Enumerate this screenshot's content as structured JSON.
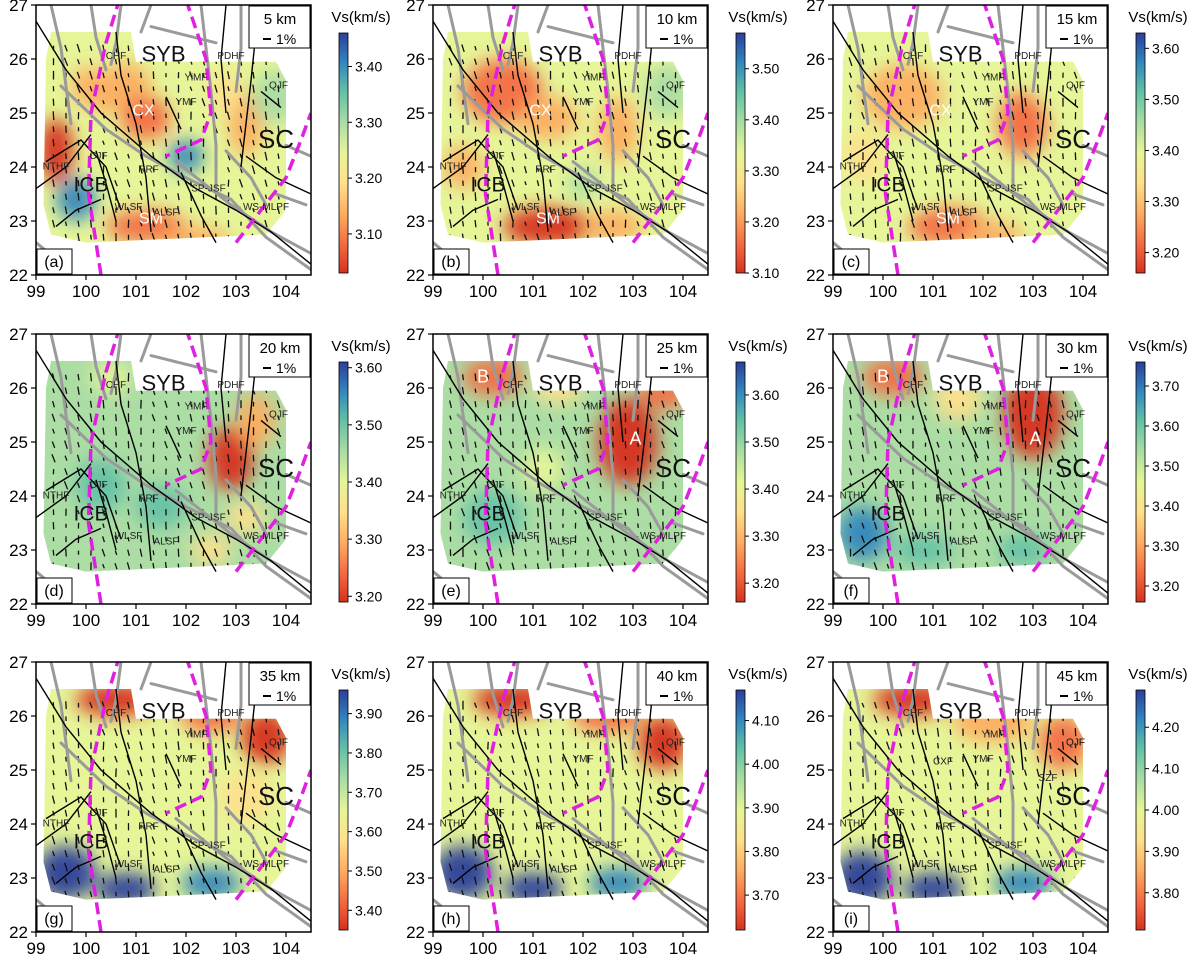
{
  "axes": {
    "lon_ticks": [
      "99",
      "100",
      "101",
      "102",
      "103",
      "104"
    ],
    "lat_ticks": [
      "22",
      "23",
      "24",
      "25",
      "26",
      "27"
    ],
    "lon_range": [
      99,
      104.5
    ],
    "lat_range": [
      22,
      27
    ]
  },
  "legend_common": {
    "colorbar_title": "Vs(km/s)",
    "scale_label": "1%"
  },
  "colormap": [
    "#d7301f",
    "#f46d43",
    "#fdae61",
    "#fee08b",
    "#e6f598",
    "#abdda4",
    "#66c2a5",
    "#3288bd",
    "#2c3e9a"
  ],
  "colors": {
    "magenta_line": "#e020e0",
    "fault_black": "#000000",
    "fault_gray": "#9a9a9a",
    "region_label": "#ffffff"
  },
  "panels": [
    {
      "label": "(a)",
      "depth": "5 km",
      "cbar_range": [
        3.03,
        3.46
      ],
      "cbar_ticks": [
        "3.10",
        "3.20",
        "3.30",
        "3.40"
      ],
      "cbar_tick_values": [
        3.1,
        3.2,
        3.3,
        3.4
      ],
      "region_labels": [
        "SYB",
        "CX",
        "SC",
        "ICB",
        "SM"
      ],
      "fault_labels": [
        "CHF",
        "PDHF",
        "YiMF",
        "YMF",
        "QJF",
        "CJF",
        "NTHF",
        "RRF",
        "WLSF",
        "ALSF",
        "SP-JSF",
        "WS-MLPF"
      ],
      "velocity_pattern": "shallow5"
    },
    {
      "label": "(b)",
      "depth": "10 km",
      "cbar_range": [
        3.1,
        3.57
      ],
      "cbar_ticks": [
        "3.10",
        "3.20",
        "3.30",
        "3.40",
        "3.50"
      ],
      "cbar_tick_values": [
        3.1,
        3.2,
        3.3,
        3.4,
        3.5
      ],
      "region_labels": [
        "SYB",
        "CX",
        "SC",
        "ICB",
        "SM"
      ],
      "fault_labels": [
        "CHF",
        "PDHF",
        "YiMF",
        "YMF",
        "QJF",
        "CJF",
        "NTHF",
        "RRF",
        "WLSF",
        "ALSF",
        "SP-JSF",
        "WS-MLPF"
      ],
      "velocity_pattern": "shallow10"
    },
    {
      "label": "(c)",
      "depth": "15 km",
      "cbar_range": [
        3.16,
        3.63
      ],
      "cbar_ticks": [
        "3.20",
        "3.30",
        "3.40",
        "3.50",
        "3.60"
      ],
      "cbar_tick_values": [
        3.2,
        3.3,
        3.4,
        3.5,
        3.6
      ],
      "region_labels": [
        "SYB",
        "CX",
        "SC",
        "ICB",
        "SM"
      ],
      "fault_labels": [
        "CHF",
        "PDHF",
        "YiMF",
        "YMF",
        "QJF",
        "CJF",
        "NTHF",
        "RRF",
        "WLSF",
        "ALSF",
        "SP-JSF",
        "WS-MLPF"
      ],
      "velocity_pattern": "shallow15"
    },
    {
      "label": "(d)",
      "depth": "20 km",
      "cbar_range": [
        3.19,
        3.61
      ],
      "cbar_ticks": [
        "3.20",
        "3.30",
        "3.40",
        "3.50",
        "3.60"
      ],
      "cbar_tick_values": [
        3.2,
        3.3,
        3.4,
        3.5,
        3.6
      ],
      "region_labels": [
        "SYB",
        "SC",
        "ICB"
      ],
      "fault_labels": [
        "CHF",
        "PDHF",
        "YiMF",
        "YMF",
        "QJF",
        "CJF",
        "NTHF",
        "RRF",
        "WLSF",
        "ALSF",
        "SP-JSF",
        "WS-MLPF"
      ],
      "velocity_pattern": "mid20"
    },
    {
      "label": "(e)",
      "depth": "25 km",
      "cbar_range": [
        3.16,
        3.67
      ],
      "cbar_ticks": [
        "3.20",
        "3.30",
        "3.40",
        "3.50",
        "3.60"
      ],
      "cbar_tick_values": [
        3.2,
        3.3,
        3.4,
        3.5,
        3.6
      ],
      "region_labels": [
        "SYB",
        "SC",
        "ICB",
        "A",
        "B"
      ],
      "fault_labels": [
        "CHF",
        "PDHF",
        "YiMF",
        "YMF",
        "QJF",
        "CJF",
        "NTHF",
        "RRF",
        "WLSF",
        "ALSF",
        "SP-JSF",
        "WS-MLPF"
      ],
      "velocity_pattern": "mid25"
    },
    {
      "label": "(f)",
      "depth": "30 km",
      "cbar_range": [
        3.16,
        3.76
      ],
      "cbar_ticks": [
        "3.20",
        "3.30",
        "3.40",
        "3.50",
        "3.60",
        "3.70"
      ],
      "cbar_tick_values": [
        3.2,
        3.3,
        3.4,
        3.5,
        3.6,
        3.7
      ],
      "region_labels": [
        "SYB",
        "SC",
        "ICB",
        "A",
        "B"
      ],
      "fault_labels": [
        "CHF",
        "PDHF",
        "YiMF",
        "YMF",
        "QJF",
        "CJF",
        "NTHF",
        "RRF",
        "WLSF",
        "ALSF",
        "SP-JSF",
        "WS-MLPF"
      ],
      "velocity_pattern": "mid30"
    },
    {
      "label": "(g)",
      "depth": "35 km",
      "cbar_range": [
        3.35,
        3.96
      ],
      "cbar_ticks": [
        "3.40",
        "3.50",
        "3.60",
        "3.70",
        "3.80",
        "3.90"
      ],
      "cbar_tick_values": [
        3.4,
        3.5,
        3.6,
        3.7,
        3.8,
        3.9
      ],
      "region_labels": [
        "SYB",
        "SC",
        "ICB"
      ],
      "fault_labels": [
        "CHF",
        "PDHF",
        "YiMF",
        "YMF",
        "QJF",
        "CJF",
        "NTHF",
        "RRF",
        "WLSF",
        "ALSF",
        "SP-JSF",
        "WS-MLPF"
      ],
      "velocity_pattern": "deep35"
    },
    {
      "label": "(h)",
      "depth": "40 km",
      "cbar_range": [
        3.62,
        4.17
      ],
      "cbar_ticks": [
        "3.70",
        "3.80",
        "3.90",
        "4.00",
        "4.10"
      ],
      "cbar_tick_values": [
        3.7,
        3.8,
        3.9,
        4.0,
        4.1
      ],
      "region_labels": [
        "SYB",
        "SC",
        "ICB"
      ],
      "fault_labels": [
        "CHF",
        "PDHF",
        "YiMF",
        "YMF",
        "QJF",
        "CJF",
        "NTHF",
        "RRF",
        "WLSF",
        "ALSF",
        "SP-JSF",
        "WS-MLPF"
      ],
      "velocity_pattern": "deep40"
    },
    {
      "label": "(i)",
      "depth": "45 km",
      "cbar_range": [
        3.71,
        4.29
      ],
      "cbar_ticks": [
        "3.80",
        "3.90",
        "4.00",
        "4.10",
        "4.20"
      ],
      "cbar_tick_values": [
        3.8,
        3.9,
        4.0,
        4.1,
        4.2
      ],
      "region_labels": [
        "SYB",
        "SC",
        "ICB"
      ],
      "fault_labels": [
        "CHF",
        "PDHF",
        "YiMF",
        "YMF",
        "QJF",
        "CXF",
        "QJF",
        "CJF",
        "NTHF",
        "RRF",
        "WLSF",
        "ALSF",
        "SP-JSF",
        "WS-MLPF",
        "SZF"
      ],
      "velocity_pattern": "deep45"
    }
  ]
}
